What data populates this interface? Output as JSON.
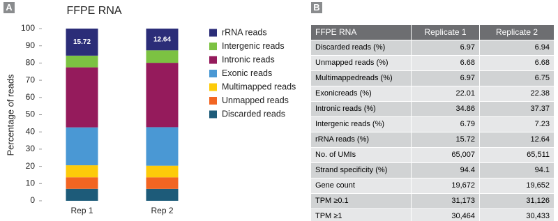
{
  "panels": [
    "A",
    "B"
  ],
  "chart_data": {
    "type": "stacked-bar",
    "title": "FFPE RNA",
    "y_label": "Percentage of reads",
    "categories": [
      "Rep 1",
      "Rep 2"
    ],
    "series": [
      {
        "name": "Discarded reads",
        "color": "#1d5b79",
        "values": [
          6.97,
          6.94
        ]
      },
      {
        "name": "Unmapped reads",
        "color": "#f26522",
        "values": [
          6.68,
          6.68
        ]
      },
      {
        "name": "Multimapped reads",
        "color": "#fdcb0a",
        "values": [
          6.97,
          6.75
        ]
      },
      {
        "name": "Exonic reads",
        "color": "#4a98d4",
        "values": [
          22.01,
          22.38
        ]
      },
      {
        "name": "Intronic reads",
        "color": "#951b5c",
        "values": [
          34.86,
          37.37
        ]
      },
      {
        "name": "Intergenic reads",
        "color": "#7cc242",
        "values": [
          6.79,
          7.23
        ]
      },
      {
        "name": "rRNA reads",
        "color": "#2b2d78",
        "values": [
          15.72,
          12.64
        ],
        "show_labels": true
      }
    ],
    "ylim": [
      0,
      100
    ],
    "yticks": [
      0,
      10,
      20,
      30,
      40,
      50,
      60,
      70,
      80,
      90,
      100
    ],
    "grid": false
  },
  "table": {
    "header": [
      "FFPE RNA",
      "Replicate 1",
      "Replicate 2"
    ],
    "rows": [
      [
        "Discarded reads (%)",
        "6.97",
        "6.94"
      ],
      [
        "Unmapped reads (%)",
        "6.68",
        "6.68"
      ],
      [
        "Multimappedreads (%)",
        "6.97",
        "6.75"
      ],
      [
        "Exonicreads (%)",
        "22.01",
        "22.38"
      ],
      [
        "Intronic reads (%)",
        "34.86",
        "37.37"
      ],
      [
        "Intergenic reads (%)",
        "6.79",
        "7.23"
      ],
      [
        "rRNA reads (%)",
        "15.72",
        "12.64"
      ],
      [
        "No. of UMIs",
        "65,007",
        "65,511"
      ],
      [
        "Strand specificity (%)",
        "94.4",
        "94.1"
      ],
      [
        "Gene count",
        "19,672",
        "19,652"
      ],
      [
        "TPM ≥0.1",
        "31,173",
        "31,126"
      ],
      [
        "TPM ≥1",
        "30,464",
        "30,433"
      ]
    ]
  }
}
